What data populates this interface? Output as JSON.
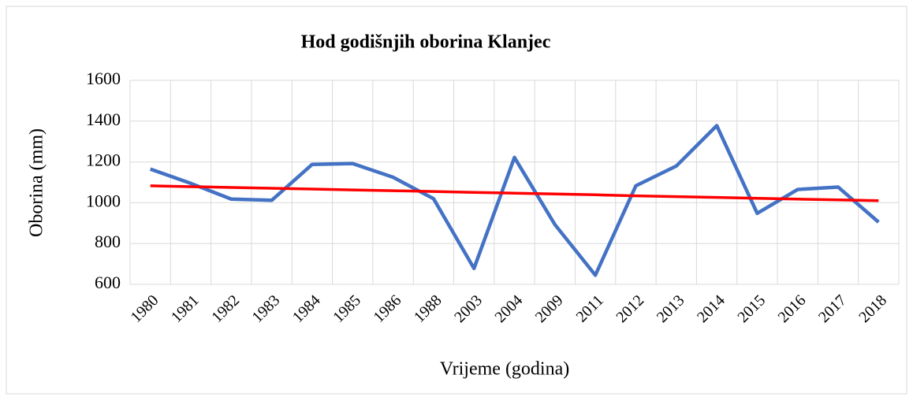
{
  "chart_data": {
    "type": "line",
    "title": "Hod godišnjih oborina Klanjec",
    "x_label": "Vrijeme (godina)",
    "y_label": "Oborina (mm)",
    "categories": [
      "1980",
      "1981",
      "1982",
      "1983",
      "1984",
      "1985",
      "1986",
      "1988",
      "2003",
      "2004",
      "2009",
      "2011",
      "2012",
      "2013",
      "2014",
      "2015",
      "2016",
      "2017",
      "2018"
    ],
    "series": [
      {
        "color": "#4472c4",
        "values": [
          1165,
          1095,
          1018,
          1012,
          1188,
          1192,
          1125,
          1020,
          678,
          1222,
          893,
          645,
          1083,
          1180,
          1378,
          948,
          1065,
          1077,
          905
        ]
      },
      {
        "color": "#ff0000",
        "values": [
          1083,
          1079,
          1075,
          1071,
          1067,
          1063,
          1059,
          1055,
          1051,
          1047,
          1043,
          1039,
          1034,
          1030,
          1026,
          1022,
          1018,
          1014,
          1010
        ]
      }
    ],
    "ylim": [
      600,
      1600
    ],
    "yticks": [
      600,
      800,
      1000,
      1200,
      1400,
      1600
    ],
    "grid": true
  }
}
